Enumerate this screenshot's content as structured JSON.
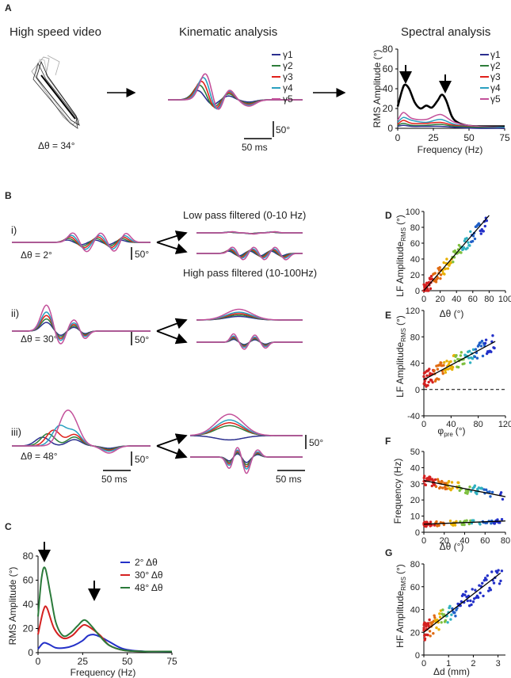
{
  "colors": {
    "g1": "#2b2f8f",
    "g2": "#2e7d3a",
    "g3": "#e0201a",
    "g4": "#2aa0c0",
    "g5": "#c3509a",
    "black": "#000000",
    "blue": "#2330c8",
    "red": "#d42020",
    "green": "#2a7a3a"
  },
  "panelA": {
    "letter": "A",
    "title_video": "High speed video",
    "title_kin": "Kinematic analysis",
    "title_spec": "Spectral analysis",
    "delta_label": "Δθ = 34°",
    "kin_scale_amp": "50°",
    "kin_scale_time": "50 ms",
    "legend": [
      "γ1",
      "γ2",
      "γ3",
      "γ4",
      "γ5"
    ],
    "spec_ylabel": "RMS Amplitude (°)",
    "spec_xlabel": "Frequency (Hz)",
    "spec_yticks": [
      "0",
      "20",
      "40",
      "60",
      "80"
    ],
    "spec_xticks": [
      "0",
      "25",
      "50",
      "75"
    ]
  },
  "panelB": {
    "letter": "B",
    "low_pass": "Low pass filtered (0-10 Hz)",
    "high_pass": "High pass filtered (10-100Hz)",
    "rows": [
      {
        "roman": "i)",
        "delta": "Δθ = 2°",
        "scale": "50°"
      },
      {
        "roman": "ii)",
        "delta": "Δθ = 30°",
        "scale": "50°"
      },
      {
        "roman": "iii)",
        "delta": "Δθ = 48°",
        "scale": "50°"
      }
    ],
    "filtered_scale": "50°",
    "time_scale": "50 ms"
  },
  "panelC": {
    "letter": "C",
    "ylabel": "RMS Amplitude (°)",
    "xlabel": "Frequency (Hz)",
    "yticks": [
      "0",
      "20",
      "40",
      "60",
      "80"
    ],
    "xticks": [
      "0",
      "25",
      "50",
      "75"
    ],
    "legend": [
      "2° Δθ",
      "30° Δθ",
      "48° Δθ"
    ]
  },
  "panelD": {
    "letter": "D",
    "ylabel": "LF Amplitude",
    "ylabel_sub": "RMS",
    "ylabel_unit": "(°)",
    "xlabel": "Δθ (°)",
    "yticks": [
      "0",
      "20",
      "40",
      "60",
      "80",
      "100"
    ],
    "xticks": [
      "0",
      "20",
      "40",
      "60",
      "80",
      "100"
    ]
  },
  "panelE": {
    "letter": "E",
    "ylabel": "LF Amplitude",
    "ylabel_sub": "RMS",
    "ylabel_unit": "(°)",
    "xlabel": "φ",
    "xlabel_sub": "pre",
    "xlabel_unit": "(°)",
    "yticks": [
      "-40",
      "0",
      "40",
      "80",
      "120"
    ],
    "xticks": [
      "0",
      "40",
      "80",
      "120"
    ]
  },
  "panelF": {
    "letter": "F",
    "ylabel": "Frequency (Hz)",
    "xlabel": "Δθ (°)",
    "yticks": [
      "0",
      "10",
      "20",
      "30",
      "40",
      "50"
    ],
    "xticks": [
      "0",
      "20",
      "40",
      "60",
      "80"
    ]
  },
  "panelG": {
    "letter": "G",
    "ylabel": "HF Amplitude",
    "ylabel_sub": "RMS",
    "ylabel_unit": "(°)",
    "xlabel": "Δd (mm)",
    "yticks": [
      "0",
      "20",
      "40",
      "60",
      "80"
    ],
    "xticks": [
      "0",
      "1",
      "2",
      "3"
    ]
  },
  "chart_data": [
    {
      "type": "line",
      "title": "Spectral analysis",
      "xlabel": "Frequency (Hz)",
      "ylabel": "RMS Amplitude (°)",
      "xlim": [
        0,
        75
      ],
      "ylim": [
        0,
        80
      ],
      "series": [
        {
          "name": "total",
          "x": [
            0,
            3,
            5,
            8,
            12,
            16,
            20,
            24,
            28,
            31,
            34,
            38,
            42,
            48,
            55,
            65,
            75
          ],
          "values": [
            22,
            38,
            44,
            40,
            26,
            20,
            23,
            21,
            28,
            34,
            28,
            12,
            6,
            3,
            2,
            2,
            2
          ]
        },
        {
          "name": "γ5",
          "x": [
            0,
            4,
            10,
            20,
            30,
            40,
            55,
            75
          ],
          "values": [
            8,
            16,
            10,
            9,
            14,
            6,
            2,
            1
          ]
        },
        {
          "name": "γ4",
          "x": [
            0,
            4,
            10,
            20,
            30,
            40,
            55,
            75
          ],
          "values": [
            6,
            11,
            8,
            6,
            9,
            4,
            1,
            1
          ]
        },
        {
          "name": "γ3",
          "x": [
            0,
            4,
            10,
            20,
            30,
            40,
            55,
            75
          ],
          "values": [
            4,
            8,
            5,
            5,
            6,
            3,
            1,
            0
          ]
        },
        {
          "name": "γ2",
          "x": [
            0,
            4,
            10,
            20,
            30,
            40,
            55,
            75
          ],
          "values": [
            3,
            5,
            3,
            3,
            4,
            2,
            1,
            0
          ]
        },
        {
          "name": "γ1",
          "x": [
            0,
            4,
            10,
            20,
            30,
            40,
            55,
            75
          ],
          "values": [
            2,
            3,
            2,
            2,
            2,
            1,
            0,
            0
          ]
        }
      ]
    },
    {
      "type": "line",
      "title": "C",
      "xlabel": "Frequency (Hz)",
      "ylabel": "RMS Amplitude (°)",
      "xlim": [
        0,
        75
      ],
      "ylim": [
        0,
        80
      ],
      "series": [
        {
          "name": "2° Δθ",
          "x": [
            0,
            3,
            6,
            10,
            15,
            20,
            25,
            28,
            31,
            35,
            40,
            48,
            60,
            75
          ],
          "values": [
            3,
            8,
            7,
            4,
            4,
            6,
            10,
            14,
            15,
            13,
            9,
            3,
            1,
            1
          ]
        },
        {
          "name": "30° Δθ",
          "x": [
            0,
            3,
            5,
            9,
            14,
            19,
            23,
            26,
            30,
            35,
            40,
            48,
            60,
            75
          ],
          "values": [
            15,
            35,
            37,
            20,
            12,
            14,
            20,
            23,
            20,
            14,
            6,
            2,
            1,
            1
          ]
        },
        {
          "name": "48° Δθ",
          "x": [
            0,
            2,
            4,
            7,
            10,
            14,
            18,
            22,
            26,
            30,
            35,
            40,
            48,
            60,
            75
          ],
          "values": [
            30,
            62,
            70,
            48,
            25,
            14,
            16,
            22,
            27,
            22,
            13,
            6,
            2,
            1,
            1
          ]
        }
      ]
    },
    {
      "type": "scatter",
      "title": "D",
      "xlabel": "Δθ (°)",
      "ylabel": "LF Amplitude RMS (°)",
      "xlim": [
        0,
        100
      ],
      "ylim": [
        0,
        100
      ],
      "fit": [
        [
          0,
          0
        ],
        [
          80,
          95
        ]
      ]
    },
    {
      "type": "scatter",
      "title": "E",
      "xlabel": "φpre (°)",
      "ylabel": "LF Amplitude RMS (°)",
      "xlim": [
        0,
        120
      ],
      "ylim": [
        -40,
        120
      ],
      "fit": [
        [
          0,
          15
        ],
        [
          105,
          73
        ]
      ],
      "reference_line": 0
    },
    {
      "type": "scatter",
      "title": "F",
      "xlabel": "Δθ (°)",
      "ylabel": "Frequency (Hz)",
      "xlim": [
        0,
        80
      ],
      "ylim": [
        0,
        50
      ],
      "fits": [
        [
          [
            0,
            32
          ],
          [
            80,
            22
          ]
        ],
        [
          [
            0,
            5
          ],
          [
            80,
            7
          ]
        ]
      ]
    },
    {
      "type": "scatter",
      "title": "G",
      "xlabel": "Δd (mm)",
      "ylabel": "HF Amplitude RMS (°)",
      "xlim": [
        0,
        3.3
      ],
      "ylim": [
        0,
        80
      ],
      "fit": [
        [
          0,
          20
        ],
        [
          3.1,
          72
        ]
      ]
    }
  ]
}
